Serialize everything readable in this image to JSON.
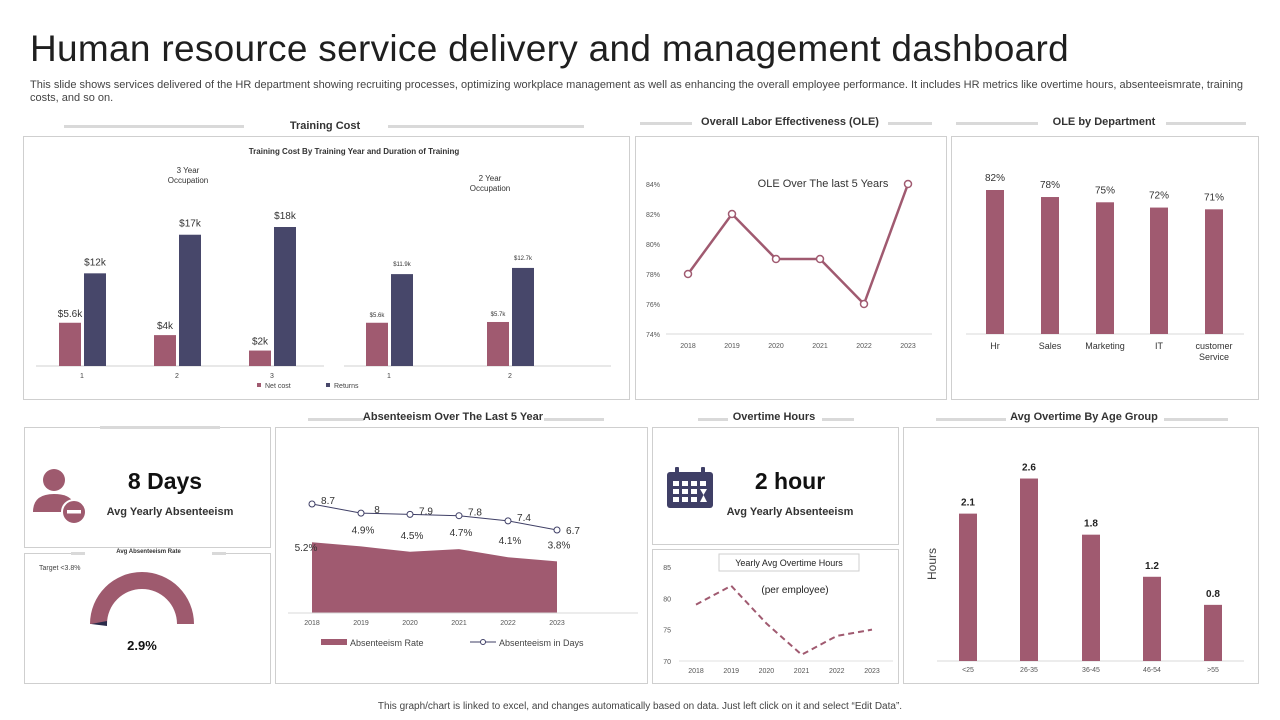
{
  "header": {
    "title": "Human resource service delivery and management dashboard",
    "description": "This slide shows services delivered of the HR department showing recruiting processes, optimizing workplace management as well as enhancing the overall employee performance. It includes HR metrics like overtime hours, absenteeismrate, training costs, and so on."
  },
  "sections": {
    "training_cost": "Training Cost",
    "ole": "Overall Labor Effectiveness (OLE)",
    "ole_dept": "OLE by Department",
    "absenteeism": "Absenteeism Over The Last 5 Year",
    "overtime": "Overtime Hours",
    "overtime_age": "Avg Overtime By Age Group"
  },
  "kpis": {
    "absent_value": "8 Days",
    "absent_label": "Avg Yearly Absenteeism",
    "overtime_value": "2 hour",
    "overtime_label": "Avg Yearly Absenteeism"
  },
  "gauge": {
    "title": "Avg Absenteeism Rate",
    "target": "Target <3.8%",
    "value_label": "2.9%",
    "value": 2.9,
    "color": "#9e5a6e"
  },
  "colors": {
    "maroon": "#a05a70",
    "navy": "#47476a",
    "grid": "#e0e0e0"
  },
  "icons": {
    "absent": "person-minus-icon",
    "overtime": "calendar-icon"
  },
  "footer": "This graph/chart is linked to excel, and changes automatically based on data. Just left click on it and select “Edit Data”.",
  "chart_data": [
    {
      "id": "training",
      "type": "bar",
      "title": "Training Cost By Training Year and Duration of Training",
      "groups": [
        {
          "name": "3 Year\nOccupation",
          "categories": [
            "1",
            "2",
            "3"
          ],
          "net": [
            5.6,
            4,
            2
          ],
          "returns": [
            12,
            17,
            18
          ],
          "net_labels": [
            "$5.6k",
            "$4k",
            "$2k"
          ],
          "ret_labels": [
            "$12k",
            "$17k",
            "$18k"
          ]
        },
        {
          "name": "2 Year\nOccupation",
          "categories": [
            "1",
            "2"
          ],
          "net": [
            5.6,
            5.7
          ],
          "returns": [
            11.9,
            12.7
          ],
          "net_labels": [
            "$5.6k",
            "$5.7k"
          ],
          "ret_labels": [
            "$11.9k",
            "$12.7k"
          ]
        }
      ],
      "legend": [
        "Net cost",
        "Returns"
      ]
    },
    {
      "id": "ole",
      "type": "line",
      "title": "OLE Over The last 5 Years",
      "x": [
        "2018",
        "2019",
        "2020",
        "2021",
        "2022",
        "2023"
      ],
      "values": [
        78,
        82,
        79,
        79,
        76,
        84
      ],
      "ylim": [
        74,
        84
      ],
      "yticks": [
        "74%",
        "76%",
        "78%",
        "80%",
        "82%",
        "84%"
      ]
    },
    {
      "id": "ole_dept",
      "type": "bar",
      "categories": [
        "Hr",
        "Sales",
        "Marketing",
        "IT",
        "customer\nService"
      ],
      "values": [
        82,
        78,
        75,
        72,
        71
      ],
      "labels": [
        "82%",
        "78%",
        "75%",
        "72%",
        "71%"
      ]
    },
    {
      "id": "absenteeism",
      "type": "area",
      "x": [
        "2018",
        "2019",
        "2020",
        "2021",
        "2022",
        "2023"
      ],
      "rate": [
        5.2,
        4.9,
        4.5,
        4.7,
        4.1,
        3.8
      ],
      "rate_labels": [
        "5.2%",
        "4.9%",
        "4.5%",
        "4.7%",
        "4.1%",
        "3.8%"
      ],
      "days": [
        8.7,
        8,
        7.9,
        7.8,
        7.4,
        6.7
      ],
      "days_labels": [
        "8.7",
        "8",
        "7.9",
        "7.8",
        "7.4",
        "6.7"
      ],
      "legend": [
        "Absenteeism Rate",
        "Absenteeism in Days"
      ]
    },
    {
      "id": "overtime_yearly",
      "type": "line",
      "title": "Yearly Avg Overtime Hours",
      "subtitle": "(per employee)",
      "x": [
        "2018",
        "2019",
        "2020",
        "2021",
        "2022",
        "2023"
      ],
      "values": [
        79,
        82,
        76,
        71,
        74,
        75
      ],
      "ylim": [
        70,
        85
      ],
      "yticks": [
        "70",
        "75",
        "80",
        "85"
      ]
    },
    {
      "id": "overtime_age",
      "type": "bar",
      "categories": [
        "<25",
        "26-35",
        "36-45",
        "46-54",
        ">55"
      ],
      "values": [
        2.1,
        2.6,
        1.8,
        1.2,
        0.8
      ],
      "labels": [
        "2.1",
        "2.6",
        "1.8",
        "1.2",
        "0.8"
      ],
      "ylabel": "Hours",
      "ylim": [
        0,
        2.75
      ]
    }
  ]
}
